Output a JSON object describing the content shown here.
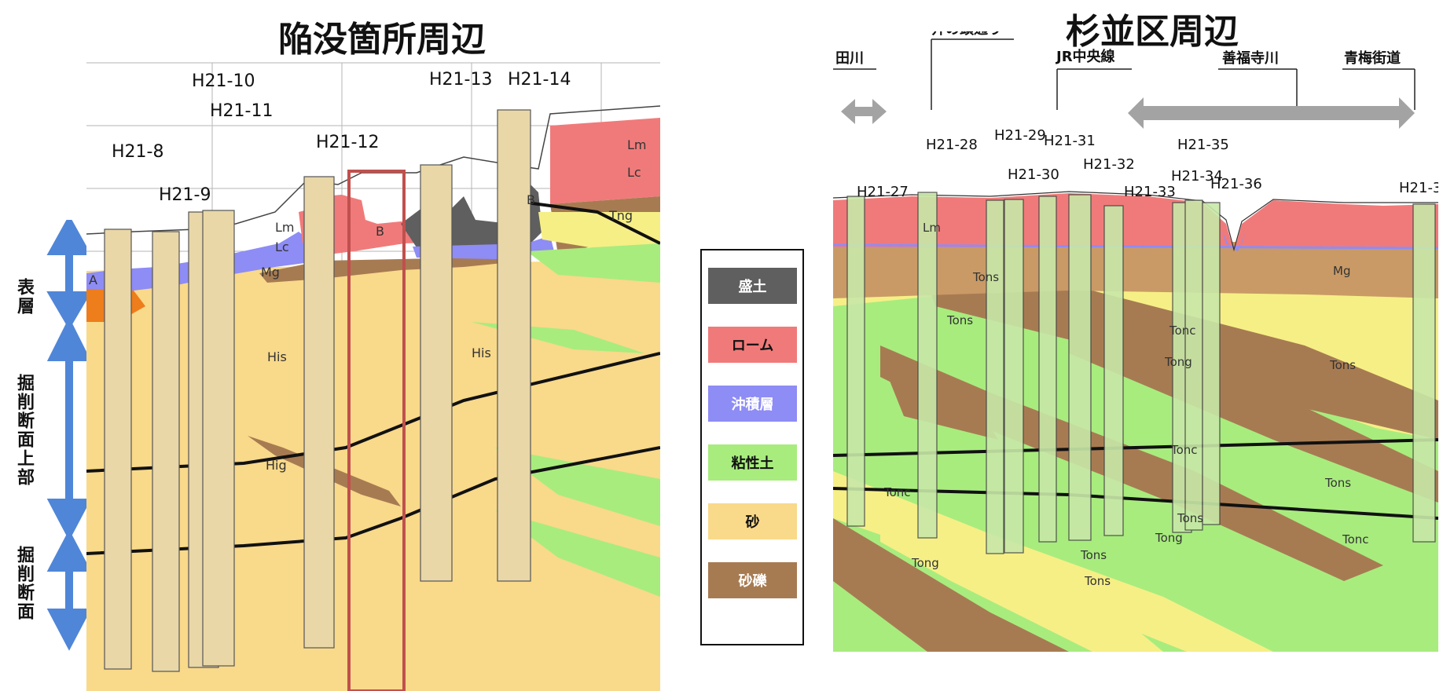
{
  "titles": {
    "left": "陥没箇所周辺",
    "right": "杉並区周辺"
  },
  "side_labels": {
    "surface": "表層",
    "excavation_upper": "掘削断面上部",
    "excavation": "掘削断面"
  },
  "legend": {
    "items": [
      {
        "label": "盛土",
        "color": "#5f5f5f",
        "text_color": "#ffffff"
      },
      {
        "label": "ローム",
        "color": "#f07a7a",
        "text_color": "#111111"
      },
      {
        "label": "沖積層",
        "color": "#8e8cf5",
        "text_color": "#ffffff"
      },
      {
        "label": "粘性土",
        "color": "#a8ec7e",
        "text_color": "#111111"
      },
      {
        "label": "砂",
        "color": "#f9d98a",
        "text_color": "#111111"
      },
      {
        "label": "砂礫",
        "color": "#a77b52",
        "text_color": "#ffffff"
      }
    ]
  },
  "left_section": {
    "boreholes": [
      "H21-8",
      "H21-9",
      "H21-10",
      "H21-11",
      "H21-12",
      "H21-13",
      "H21-14"
    ],
    "layer_labels": [
      "A",
      "Lm",
      "Lc",
      "Mg",
      "His",
      "His",
      "Hig",
      "B",
      "B",
      "Lm",
      "Lc",
      "Tng"
    ]
  },
  "right_section": {
    "places": [
      "田川",
      "井の頭通り",
      "JR中央線",
      "善福寺川",
      "青梅街道"
    ],
    "boreholes": [
      "H21-27",
      "H21-28",
      "H21-29",
      "H21-30",
      "H21-31",
      "H21-32",
      "H21-33",
      "H21-34",
      "H21-35",
      "H21-36",
      "H21-3"
    ],
    "layer_labels": [
      "Lm",
      "Mg",
      "Tons",
      "Tons",
      "Tonc",
      "Tong",
      "Tons",
      "Tonc",
      "Tons",
      "Tonc",
      "Tons",
      "Tonc",
      "Tons",
      "Tong",
      "Tong",
      "Tons"
    ]
  }
}
